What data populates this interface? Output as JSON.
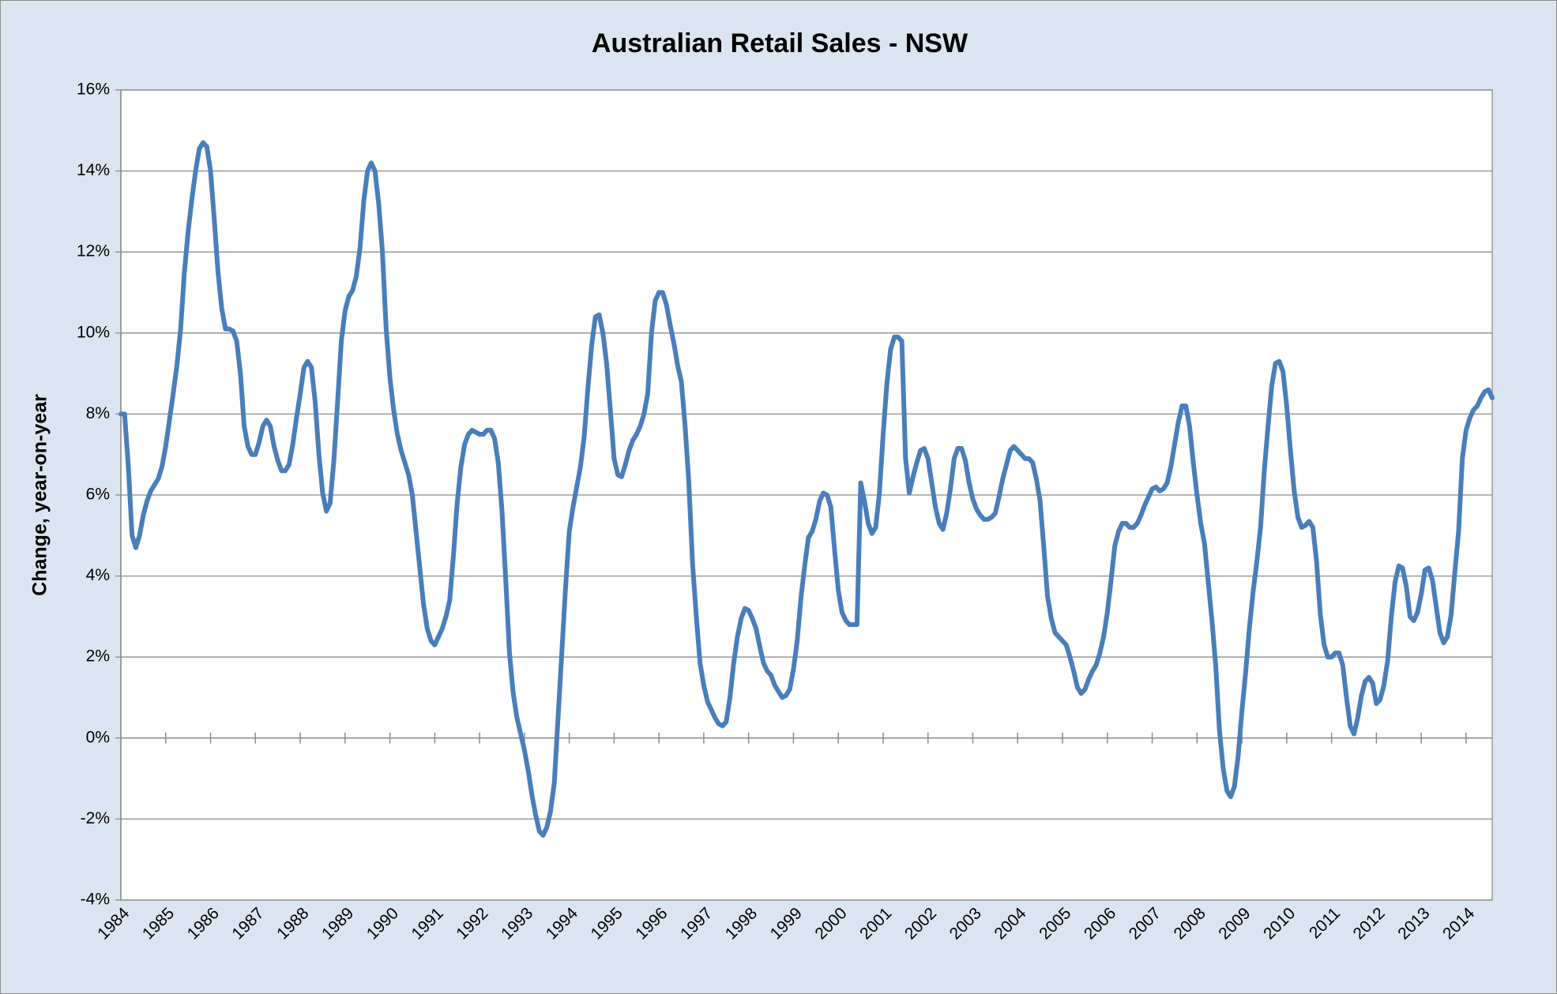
{
  "chart_data": {
    "type": "line",
    "title": "Australian Retail Sales - NSW",
    "y_label": "Change, year-on-year",
    "color": "#4a7ebb",
    "grid": true,
    "ylim": [
      -4,
      16
    ],
    "yticks": [
      {
        "value": -4,
        "label": "-4%"
      },
      {
        "value": -2,
        "label": "-2%"
      },
      {
        "value": 0,
        "label": "0%"
      },
      {
        "value": 2,
        "label": "2%"
      },
      {
        "value": 4,
        "label": "4%"
      },
      {
        "value": 6,
        "label": "6%"
      },
      {
        "value": 8,
        "label": "8%"
      },
      {
        "value": 10,
        "label": "10%"
      },
      {
        "value": 12,
        "label": "12%"
      },
      {
        "value": 14,
        "label": "14%"
      },
      {
        "value": 16,
        "label": "16%"
      }
    ],
    "categories": [
      "1984",
      null,
      null,
      null,
      null,
      null,
      null,
      null,
      null,
      null,
      null,
      null,
      "1985",
      null,
      null,
      null,
      null,
      null,
      null,
      null,
      null,
      null,
      null,
      null,
      "1986",
      null,
      null,
      null,
      null,
      null,
      null,
      null,
      null,
      null,
      null,
      null,
      "1987",
      null,
      null,
      null,
      null,
      null,
      null,
      null,
      null,
      null,
      null,
      null,
      "1988",
      null,
      null,
      null,
      null,
      null,
      null,
      null,
      null,
      null,
      null,
      null,
      "1989",
      null,
      null,
      null,
      null,
      null,
      null,
      null,
      null,
      null,
      null,
      null,
      "1990",
      null,
      null,
      null,
      null,
      null,
      null,
      null,
      null,
      null,
      null,
      null,
      "1991",
      null,
      null,
      null,
      null,
      null,
      null,
      null,
      null,
      null,
      null,
      null,
      "1992",
      null,
      null,
      null,
      null,
      null,
      null,
      null,
      null,
      null,
      null,
      null,
      "1993",
      null,
      null,
      null,
      null,
      null,
      null,
      null,
      null,
      null,
      null,
      null,
      "1994",
      null,
      null,
      null,
      null,
      null,
      null,
      null,
      null,
      null,
      null,
      null,
      "1995",
      null,
      null,
      null,
      null,
      null,
      null,
      null,
      null,
      null,
      null,
      null,
      "1996",
      null,
      null,
      null,
      null,
      null,
      null,
      null,
      null,
      null,
      null,
      null,
      "1997",
      null,
      null,
      null,
      null,
      null,
      null,
      null,
      null,
      null,
      null,
      null,
      "1998",
      null,
      null,
      null,
      null,
      null,
      null,
      null,
      null,
      null,
      null,
      null,
      "1999",
      null,
      null,
      null,
      null,
      null,
      null,
      null,
      null,
      null,
      null,
      null,
      "2000",
      null,
      null,
      null,
      null,
      null,
      null,
      null,
      null,
      null,
      null,
      null,
      "2001",
      null,
      null,
      null,
      null,
      null,
      null,
      null,
      null,
      null,
      null,
      null,
      "2002",
      null,
      null,
      null,
      null,
      null,
      null,
      null,
      null,
      null,
      null,
      null,
      "2003",
      null,
      null,
      null,
      null,
      null,
      null,
      null,
      null,
      null,
      null,
      null,
      "2004",
      null,
      null,
      null,
      null,
      null,
      null,
      null,
      null,
      null,
      null,
      null,
      "2005",
      null,
      null,
      null,
      null,
      null,
      null,
      null,
      null,
      null,
      null,
      null,
      "2006",
      null,
      null,
      null,
      null,
      null,
      null,
      null,
      null,
      null,
      null,
      null,
      "2007",
      null,
      null,
      null,
      null,
      null,
      null,
      null,
      null,
      null,
      null,
      null,
      "2008",
      null,
      null,
      null,
      null,
      null,
      null,
      null,
      null,
      null,
      null,
      null,
      "2009",
      null,
      null,
      null,
      null,
      null,
      null,
      null,
      null,
      null,
      null,
      null,
      "2010",
      null,
      null,
      null,
      null,
      null,
      null,
      null,
      null,
      null,
      null,
      null,
      "2011",
      null,
      null,
      null,
      null,
      null,
      null,
      null,
      null,
      null,
      null,
      null,
      "2012",
      null,
      null,
      null,
      null,
      null,
      null,
      null,
      null,
      null,
      null,
      null,
      "2013",
      null,
      null,
      null,
      null,
      null,
      null,
      null,
      null,
      null,
      null,
      null,
      "2014",
      null,
      null,
      null,
      null,
      null,
      null,
      null
    ],
    "values": [
      8.0,
      8.0,
      6.7,
      5.0,
      4.7,
      5.0,
      5.5,
      5.85,
      6.1,
      6.25,
      6.4,
      6.7,
      7.2,
      7.85,
      8.5,
      9.2,
      10.1,
      11.5,
      12.5,
      13.3,
      14.0,
      14.55,
      14.7,
      14.6,
      14.0,
      12.8,
      11.5,
      10.6,
      10.1,
      10.1,
      10.05,
      9.8,
      9.0,
      7.7,
      7.2,
      7.0,
      7.0,
      7.3,
      7.7,
      7.85,
      7.7,
      7.2,
      6.85,
      6.6,
      6.6,
      6.75,
      7.25,
      7.9,
      8.5,
      9.15,
      9.3,
      9.15,
      8.3,
      7.0,
      6.05,
      5.6,
      5.8,
      6.85,
      8.3,
      9.8,
      10.55,
      10.9,
      11.05,
      11.4,
      12.1,
      13.25,
      14.0,
      14.2,
      14.0,
      13.2,
      12.0,
      10.1,
      8.9,
      8.1,
      7.5,
      7.1,
      6.8,
      6.5,
      6.0,
      5.1,
      4.2,
      3.3,
      2.7,
      2.4,
      2.3,
      2.5,
      2.7,
      3.0,
      3.4,
      4.5,
      5.8,
      6.7,
      7.25,
      7.5,
      7.6,
      7.55,
      7.5,
      7.5,
      7.6,
      7.6,
      7.4,
      6.8,
      5.6,
      3.9,
      2.1,
      1.1,
      0.5,
      0.1,
      -0.3,
      -0.8,
      -1.4,
      -1.9,
      -2.3,
      -2.4,
      -2.2,
      -1.8,
      -1.1,
      0.5,
      2.1,
      3.7,
      5.1,
      5.7,
      6.2,
      6.7,
      7.45,
      8.65,
      9.7,
      10.4,
      10.45,
      10.0,
      9.25,
      8.1,
      6.9,
      6.5,
      6.45,
      6.75,
      7.1,
      7.35,
      7.5,
      7.7,
      8.0,
      8.5,
      10.0,
      10.8,
      11.0,
      11.0,
      10.7,
      10.2,
      9.75,
      9.2,
      8.8,
      7.7,
      6.3,
      4.3,
      3.0,
      1.85,
      1.3,
      0.9,
      0.7,
      0.5,
      0.35,
      0.3,
      0.4,
      1.0,
      1.85,
      2.5,
      2.95,
      3.2,
      3.15,
      2.95,
      2.7,
      2.25,
      1.85,
      1.65,
      1.55,
      1.3,
      1.15,
      1.0,
      1.05,
      1.2,
      1.7,
      2.4,
      3.45,
      4.25,
      4.95,
      5.1,
      5.4,
      5.85,
      6.05,
      6.0,
      5.7,
      4.65,
      3.65,
      3.1,
      2.9,
      2.8,
      2.8,
      2.8,
      6.3,
      5.85,
      5.3,
      5.05,
      5.2,
      6.05,
      7.5,
      8.75,
      9.6,
      9.9,
      9.9,
      9.8,
      6.9,
      6.05,
      6.45,
      6.8,
      7.1,
      7.15,
      6.9,
      6.3,
      5.7,
      5.3,
      5.15,
      5.55,
      6.15,
      6.9,
      7.15,
      7.15,
      6.85,
      6.3,
      5.9,
      5.65,
      5.5,
      5.4,
      5.4,
      5.45,
      5.55,
      5.95,
      6.4,
      6.75,
      7.1,
      7.2,
      7.1,
      7.0,
      6.9,
      6.9,
      6.8,
      6.4,
      5.85,
      4.7,
      3.5,
      2.95,
      2.6,
      2.5,
      2.4,
      2.3,
      2.0,
      1.65,
      1.25,
      1.1,
      1.2,
      1.45,
      1.65,
      1.8,
      2.1,
      2.5,
      3.1,
      3.9,
      4.75,
      5.1,
      5.3,
      5.3,
      5.2,
      5.2,
      5.3,
      5.5,
      5.75,
      5.95,
      6.15,
      6.2,
      6.1,
      6.15,
      6.3,
      6.7,
      7.25,
      7.8,
      8.2,
      8.2,
      7.7,
      6.8,
      6.0,
      5.3,
      4.8,
      3.85,
      2.9,
      1.8,
      0.2,
      -0.75,
      -1.3,
      -1.45,
      -1.2,
      -0.45,
      0.65,
      1.6,
      2.7,
      3.6,
      4.35,
      5.2,
      6.6,
      7.7,
      8.7,
      9.25,
      9.3,
      9.05,
      8.2,
      7.1,
      6.1,
      5.45,
      5.2,
      5.25,
      5.35,
      5.2,
      4.35,
      3.05,
      2.3,
      2.0,
      2.0,
      2.1,
      2.1,
      1.8,
      1.0,
      0.3,
      0.1,
      0.5,
      1.05,
      1.4,
      1.5,
      1.35,
      0.85,
      0.95,
      1.3,
      1.9,
      3.0,
      3.85,
      4.25,
      4.2,
      3.75,
      3.0,
      2.9,
      3.1,
      3.55,
      4.15,
      4.2,
      3.9,
      3.25,
      2.6,
      2.35,
      2.5,
      3.05,
      4.1,
      5.1,
      6.9,
      7.6,
      7.9,
      8.1,
      8.2,
      8.4,
      8.55,
      8.6,
      8.4
    ]
  }
}
